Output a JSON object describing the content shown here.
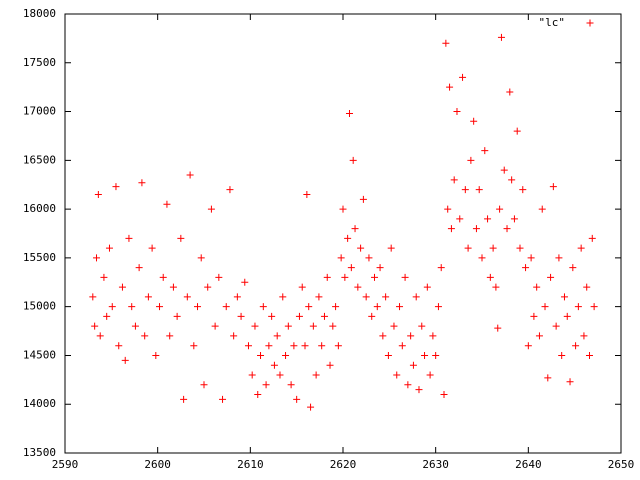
{
  "chart_data": {
    "type": "scatter",
    "legend": "upper right",
    "xlim": [
      2590,
      2650
    ],
    "xticks": [
      2590,
      2600,
      2610,
      2620,
      2630,
      2640,
      2650
    ],
    "ylim": [
      13500,
      18000
    ],
    "yticks": [
      13500,
      14000,
      14500,
      15000,
      15500,
      16000,
      16500,
      17000,
      17500,
      18000
    ],
    "series": [
      {
        "name": "\"lc\"",
        "color": "#ff0000",
        "x": [
          2593.0,
          2593.2,
          2593.4,
          2593.6,
          2593.8,
          2594.2,
          2594.5,
          2594.8,
          2595.1,
          2595.5,
          2595.8,
          2596.2,
          2596.5,
          2596.9,
          2597.2,
          2597.6,
          2598.0,
          2598.3,
          2598.6,
          2599.0,
          2599.4,
          2599.8,
          2600.2,
          2600.6,
          2601.0,
          2601.3,
          2601.7,
          2602.1,
          2602.5,
          2602.8,
          2603.2,
          2603.5,
          2603.9,
          2604.3,
          2604.7,
          2605.0,
          2605.4,
          2605.8,
          2606.2,
          2606.6,
          2607.0,
          2607.4,
          2607.8,
          2608.2,
          2608.6,
          2609.0,
          2609.4,
          2609.8,
          2610.2,
          2610.5,
          2610.8,
          2611.1,
          2611.4,
          2611.7,
          2612.0,
          2612.3,
          2612.6,
          2612.9,
          2613.2,
          2613.5,
          2613.8,
          2614.1,
          2614.4,
          2614.7,
          2615.0,
          2615.3,
          2615.6,
          2615.9,
          2616.1,
          2616.3,
          2616.5,
          2616.8,
          2617.1,
          2617.4,
          2617.7,
          2618.0,
          2618.3,
          2618.6,
          2618.9,
          2619.2,
          2619.5,
          2619.8,
          2620.0,
          2620.2,
          2620.5,
          2620.7,
          2620.9,
          2621.1,
          2621.3,
          2621.6,
          2621.9,
          2622.2,
          2622.5,
          2622.8,
          2623.1,
          2623.4,
          2623.7,
          2624.0,
          2624.3,
          2624.6,
          2624.9,
          2625.2,
          2625.5,
          2625.8,
          2626.1,
          2626.4,
          2626.7,
          2627.0,
          2627.3,
          2627.6,
          2627.9,
          2628.2,
          2628.5,
          2628.8,
          2629.1,
          2629.4,
          2629.7,
          2630.0,
          2630.3,
          2630.6,
          2630.9,
          2631.1,
          2631.3,
          2631.5,
          2631.7,
          2632.0,
          2632.3,
          2632.6,
          2632.9,
          2633.2,
          2633.5,
          2633.8,
          2634.1,
          2634.4,
          2634.7,
          2635.0,
          2635.3,
          2635.6,
          2635.9,
          2636.2,
          2636.5,
          2636.7,
          2636.9,
          2637.1,
          2637.4,
          2637.7,
          2638.0,
          2638.2,
          2638.5,
          2638.8,
          2639.1,
          2639.4,
          2639.7,
          2640.0,
          2640.3,
          2640.6,
          2640.9,
          2641.2,
          2641.5,
          2641.8,
          2642.1,
          2642.4,
          2642.7,
          2643.0,
          2643.3,
          2643.6,
          2643.9,
          2644.2,
          2644.5,
          2644.8,
          2645.1,
          2645.4,
          2645.7,
          2646.0,
          2646.3,
          2646.6,
          2646.9,
          2647.1
        ],
        "values": [
          15100,
          14800,
          15500,
          16150,
          14700,
          15300,
          14900,
          15600,
          15000,
          16230,
          14600,
          15200,
          14450,
          15700,
          15000,
          14800,
          15400,
          16270,
          14700,
          15100,
          15600,
          14500,
          15000,
          15300,
          16050,
          14700,
          15200,
          14900,
          15700,
          14050,
          15100,
          16350,
          14600,
          15000,
          15500,
          14200,
          15200,
          16000,
          14800,
          15300,
          14050,
          15000,
          16200,
          14700,
          15100,
          14900,
          15250,
          14600,
          14300,
          14800,
          14100,
          14500,
          15000,
          14200,
          14600,
          14900,
          14400,
          14700,
          14300,
          15100,
          14500,
          14800,
          14200,
          14600,
          14050,
          14900,
          15200,
          14600,
          16150,
          15000,
          13970,
          14800,
          14300,
          15100,
          14600,
          14900,
          15300,
          14400,
          14800,
          15000,
          14600,
          15500,
          16000,
          15300,
          15700,
          16980,
          15400,
          16500,
          15800,
          15200,
          15600,
          16100,
          15100,
          15500,
          14900,
          15300,
          15000,
          15400,
          14700,
          15100,
          14500,
          15600,
          14800,
          14300,
          15000,
          14600,
          15300,
          14200,
          14700,
          14400,
          15100,
          14150,
          14800,
          14500,
          15200,
          14300,
          14700,
          14500,
          15000,
          15400,
          14100,
          17700,
          16000,
          17250,
          15800,
          16300,
          17000,
          15900,
          17350,
          16200,
          15600,
          16500,
          16900,
          15800,
          16200,
          15500,
          16600,
          15900,
          15300,
          15600,
          15200,
          14780,
          16000,
          17760,
          16400,
          15800,
          17200,
          16300,
          15900,
          16800,
          15600,
          16200,
          15400,
          14600,
          15500,
          14900,
          15200,
          14700,
          16000,
          15000,
          14270,
          15300,
          16230,
          14800,
          15500,
          14500,
          15100,
          14900,
          14230,
          15400,
          14600,
          15000,
          15600,
          14700,
          15200,
          14500,
          15700,
          15000
        ]
      }
    ]
  }
}
